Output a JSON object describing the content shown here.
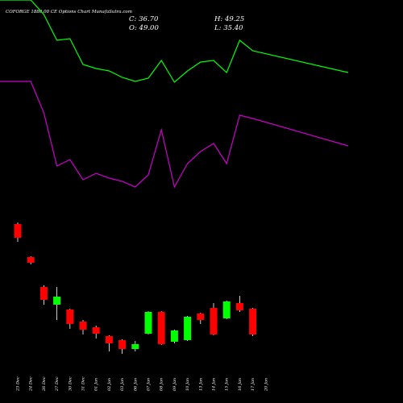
{
  "header": {
    "title": "COFORGE 1880.00 CE Options  Chart MunafaSutra.com",
    "close": "C: 36.70",
    "high": "H: 49.25",
    "open": "O: 49.00",
    "low": "L: 35.40"
  },
  "colors": {
    "background": "#000000",
    "up": "#00ff00",
    "down": "#ff0000",
    "upper_line": "#00ff00",
    "lower_line": "#cc00cc",
    "wick": "#ffffff",
    "text": "#ffffff"
  },
  "chart_data": {
    "type": "candlestick",
    "title": "COFORGE 1880.00 CE Options  Chart MunafaSutra.com",
    "categories": [
      "23 Dec",
      "24 Dec",
      "26 Dec",
      "27 Dec",
      "30 Dec",
      "31 Dec",
      "01 Jan",
      "02 Jan",
      "03 Jan",
      "06 Jan",
      "07 Jan",
      "08 Jan",
      "09 Jan",
      "10 Jan",
      "13 Jan",
      "14 Jan",
      "15 Jan",
      "16 Jan",
      "17 Jan",
      "20 Jan"
    ],
    "ohlc": [
      {
        "open": 222,
        "high": 224,
        "low": 200,
        "close": 205
      },
      {
        "open": 181,
        "high": 182,
        "low": 172,
        "close": 174
      },
      {
        "open": 144,
        "high": 146,
        "low": 122,
        "close": 128
      },
      {
        "open": 122,
        "high": 144,
        "low": 103,
        "close": 132
      },
      {
        "open": 116,
        "high": 117,
        "low": 92,
        "close": 98
      },
      {
        "open": 101,
        "high": 103,
        "low": 85,
        "close": 91
      },
      {
        "open": 94,
        "high": 96,
        "low": 80,
        "close": 86
      },
      {
        "open": 83,
        "high": 84,
        "low": 64,
        "close": 74
      },
      {
        "open": 78,
        "high": 79,
        "low": 61,
        "close": 67
      },
      {
        "open": 67,
        "high": 77,
        "low": 64,
        "close": 73
      },
      {
        "open": 86,
        "high": 114,
        "low": 85,
        "close": 113
      },
      {
        "open": 113,
        "high": 114,
        "low": 72,
        "close": 73
      },
      {
        "open": 76,
        "high": 91,
        "low": 74,
        "close": 90
      },
      {
        "open": 78,
        "high": 108,
        "low": 77,
        "close": 107
      },
      {
        "open": 111,
        "high": 112,
        "low": 98,
        "close": 103
      },
      {
        "open": 118,
        "high": 124,
        "low": 84,
        "close": 85
      },
      {
        "open": 105,
        "high": 127,
        "low": 104,
        "close": 126
      },
      {
        "open": 124,
        "high": 133,
        "low": 113,
        "close": 115
      },
      {
        "open": 117,
        "high": 118,
        "low": 83,
        "close": 85
      },
      {
        "open": null,
        "high": null,
        "low": null,
        "close": null
      }
    ],
    "series": [
      {
        "values": [
          500,
          500,
          482,
          450,
          452,
          420,
          415,
          412,
          404,
          399,
          403,
          425,
          398,
          412,
          423,
          425,
          410,
          450,
          437,
          410
        ]
      },
      {
        "values": [
          399,
          399,
          360,
          294,
          302,
          277,
          285,
          279,
          275,
          268,
          283,
          339,
          268,
          297,
          312,
          322,
          297,
          357,
          353,
          319
        ]
      }
    ]
  }
}
